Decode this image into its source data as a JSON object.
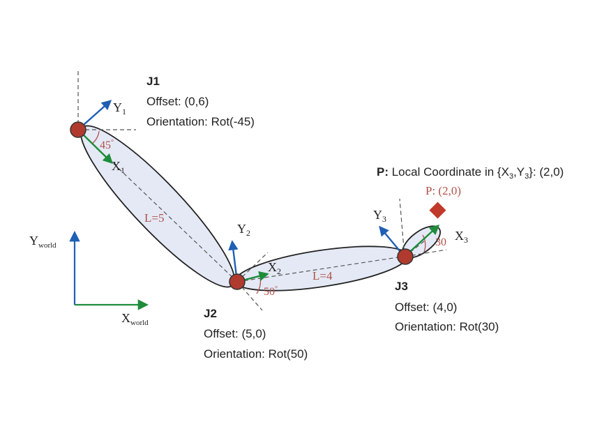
{
  "colors": {
    "link_fill": "#e4e9f5",
    "outline": "#222222",
    "joint": "#b03a2e",
    "x_axis": "#1e8c3a",
    "y_axis": "#1f5fb4",
    "annotation": "#b0524a",
    "point": "#c0392b"
  },
  "joints": [
    {
      "title": "J1",
      "offset": "Offset: (0,6)",
      "orientation": "Orientation: Rot(-45)",
      "x_label": "X",
      "x_sub": "1",
      "y_label": "Y",
      "y_sub": "1",
      "angle": "45",
      "angle_unit": "°"
    },
    {
      "title": "J2",
      "offset": "Offset: (5,0)",
      "orientation": "Orientation: Rot(50)",
      "x_label": "X",
      "x_sub": "2",
      "y_label": "Y",
      "y_sub": "2",
      "angle": "50",
      "angle_unit": "°"
    },
    {
      "title": "J3",
      "offset": "Offset: (4,0)",
      "orientation": "Orientation: Rot(30)",
      "x_label": "X",
      "x_sub": "3",
      "y_label": "Y",
      "y_sub": "3",
      "angle": "30",
      "angle_unit": "°"
    }
  ],
  "links": [
    {
      "length_label": "L=5"
    },
    {
      "length_label": "L=4"
    }
  ],
  "world": {
    "x_label": "X",
    "x_sub": "world",
    "y_label": "Y",
    "y_sub": "world"
  },
  "point": {
    "prefix": "P:",
    "caption_part1": " Local Coordinate in {X",
    "sub1": "3",
    "caption_part2": ",Y",
    "sub2": "3",
    "caption_part3": "}: (2,0)",
    "marker_label": "P: (2,0)"
  }
}
